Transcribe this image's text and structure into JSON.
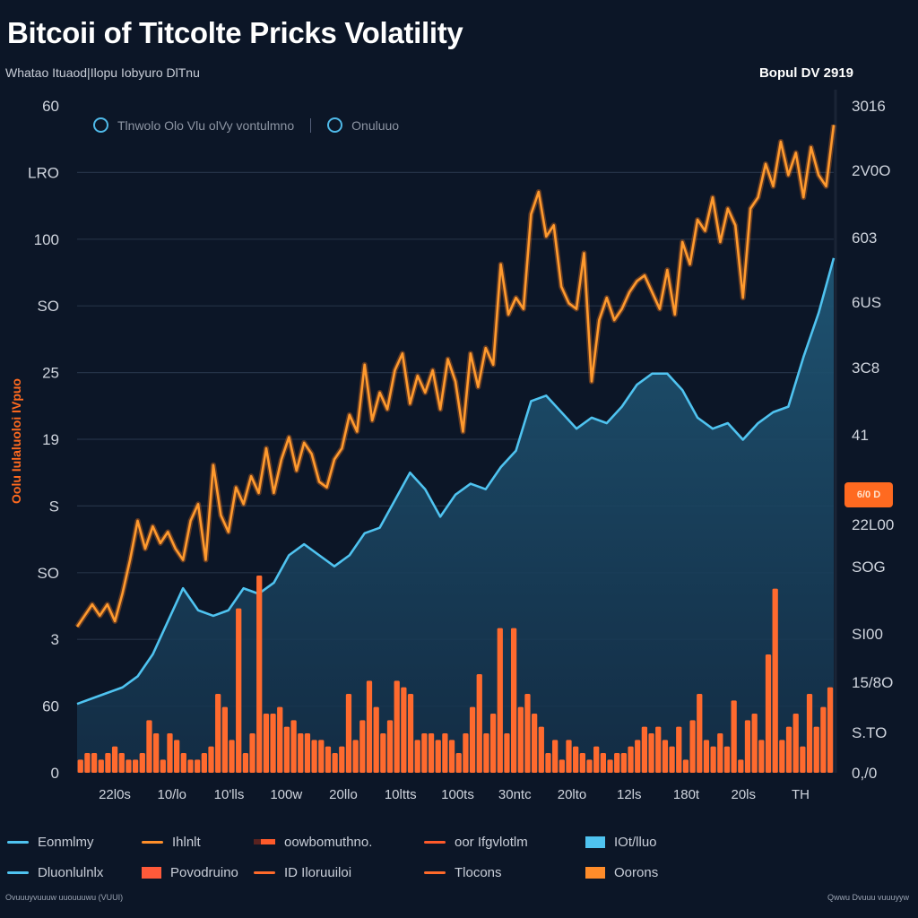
{
  "header": {
    "title": "Bitcoii of Titcolte Pricks Volatility",
    "subtitle": "Whatao Ituaod|Ilopu Iobyuro DlTnu",
    "date_label": "Bopul DV 2919"
  },
  "inner_legend": {
    "items": [
      "Tlnwolo Olo Vlu olVy vontulmno",
      "Onuluuo"
    ]
  },
  "badge": {
    "label": "6/0 D"
  },
  "footer": {
    "left": "Ovuuuyvuuuw uuouuuwu (VUUI)",
    "right": "Qwwu Dvuuu vuuuyyw"
  },
  "colors": {
    "background": "#0c1627",
    "price_line": "#ff9a2e",
    "index_line": "#4fc3f0",
    "index_fill": "#1d4a66",
    "volume_bar": "#ff6a2e",
    "grid": "#243247",
    "badge": "#ff6a20"
  },
  "legend": {
    "rows": [
      [
        {
          "label": "Eonmlmy",
          "swatch": "line",
          "color": "#4fc3f0"
        },
        {
          "label": "Ihlnlt",
          "swatch": "line",
          "color": "#ff8f2a"
        },
        {
          "label": "oowbomuthno.",
          "swatch": "dual",
          "color": "#ff5a2a"
        },
        {
          "label": "oor Ifgvlotlm",
          "swatch": "line",
          "color": "#ff5a2a"
        },
        {
          "label": "IOt/lluo",
          "swatch": "box",
          "color": "#4fc3f0"
        }
      ],
      [
        {
          "label": "Dluonlulnlx",
          "swatch": "line",
          "color": "#4fc3f0"
        },
        {
          "label": "Povodruino",
          "swatch": "box",
          "color": "#ff5a3a"
        },
        {
          "label": "ID Iloruuiloi",
          "swatch": "line",
          "color": "#ff6a2a"
        },
        {
          "label": "Tlocons",
          "swatch": "line",
          "color": "#ff6a2a"
        },
        {
          "label": "Oorons",
          "swatch": "box",
          "color": "#ff8c2a"
        }
      ]
    ]
  },
  "chart_data": {
    "type": "line",
    "title": "Bitcoii of Titcolte Pricks Volatility",
    "subtitle": "Whatao Ituaod|Ilopu Iobyuro DlTnu",
    "xlabel": "",
    "ylabel": "Oolu Iulaluoloi IVpuo",
    "ylabel_right": "",
    "grid": true,
    "legend_position": "bottom",
    "y_left_ticks": [
      "60",
      "LRO",
      "100",
      "SO",
      "25",
      "19",
      "S",
      "SO",
      "3",
      "60",
      "0"
    ],
    "y_right_ticks": [
      "3016",
      "2V0O",
      "603",
      "6US",
      "3C8",
      "41",
      "22L00",
      "SOG",
      "SI00",
      "15/8O",
      "S.TO",
      "0,/0"
    ],
    "x_ticks": [
      "22l0s",
      "10/lo",
      "10'lls",
      "100w",
      "20llo",
      "10ltts",
      "100ts",
      "30ntc",
      "20lto",
      "12ls",
      "180t",
      "20ls",
      "TH"
    ],
    "x_range": [
      0,
      100
    ],
    "y_range": [
      0,
      100
    ],
    "series": [
      {
        "name": "Price (orange)",
        "kind": "line",
        "x": [
          0,
          1,
          2,
          3,
          4,
          5,
          6,
          7,
          8,
          9,
          10,
          11,
          12,
          13,
          14,
          15,
          16,
          17,
          18,
          19,
          20,
          21,
          22,
          23,
          24,
          25,
          26,
          27,
          28,
          29,
          30,
          31,
          32,
          33,
          34,
          35,
          36,
          37,
          38,
          39,
          40,
          41,
          42,
          43,
          44,
          45,
          46,
          47,
          48,
          49,
          50,
          51,
          52,
          53,
          54,
          55,
          56,
          57,
          58,
          59,
          60,
          61,
          62,
          63,
          64,
          65,
          66,
          67,
          68,
          69,
          70,
          71,
          72,
          73,
          74,
          75,
          76,
          77,
          78,
          79,
          80,
          81,
          82,
          83,
          84,
          85,
          86,
          87,
          88,
          89,
          90,
          91,
          92,
          93,
          94,
          95,
          96,
          97,
          98,
          99,
          100
        ],
        "values": [
          13,
          15,
          17,
          15,
          17,
          14,
          19,
          25,
          32,
          27,
          31,
          28,
          30,
          27,
          25,
          32,
          35,
          25,
          42,
          33,
          30,
          38,
          35,
          40,
          37,
          45,
          37,
          43,
          47,
          41,
          46,
          44,
          39,
          38,
          43,
          45,
          51,
          48,
          60,
          50,
          55,
          52,
          59,
          62,
          53,
          58,
          55,
          59,
          52,
          61,
          57,
          48,
          62,
          56,
          63,
          60,
          78,
          69,
          72,
          70,
          87,
          91,
          83,
          85,
          74,
          71,
          70,
          80,
          57,
          68,
          72,
          68,
          70,
          73,
          75,
          76,
          73,
          70,
          77,
          69,
          82,
          78,
          86,
          84,
          90,
          82,
          88,
          85,
          72,
          88,
          90,
          96,
          92,
          100,
          94,
          98,
          90,
          99,
          94,
          92,
          103
        ]
      },
      {
        "name": "Index (blue, filled)",
        "kind": "area",
        "x": [
          0,
          2,
          4,
          6,
          8,
          10,
          12,
          14,
          16,
          18,
          20,
          22,
          24,
          26,
          28,
          30,
          32,
          34,
          36,
          38,
          40,
          42,
          44,
          46,
          48,
          50,
          52,
          54,
          56,
          58,
          60,
          62,
          64,
          66,
          68,
          70,
          72,
          74,
          76,
          78,
          80,
          82,
          84,
          86,
          88,
          90,
          92,
          94,
          96,
          98,
          100
        ],
        "values": [
          6,
          7,
          8,
          9,
          11,
          15,
          21,
          27,
          23,
          22,
          23,
          27,
          26,
          28,
          33,
          35,
          33,
          31,
          33,
          37,
          38,
          43,
          48,
          45,
          40,
          44,
          46,
          45,
          49,
          52,
          61,
          62,
          59,
          56,
          58,
          57,
          60,
          64,
          66,
          66,
          63,
          58,
          56,
          57,
          54,
          57,
          59,
          60,
          69,
          77,
          87
        ]
      },
      {
        "name": "Volume (bars)",
        "kind": "bar",
        "values": [
          2,
          3,
          3,
          2,
          3,
          4,
          3,
          2,
          2,
          3,
          8,
          6,
          2,
          6,
          5,
          3,
          2,
          2,
          3,
          4,
          12,
          10,
          5,
          25,
          3,
          6,
          30,
          9,
          9,
          10,
          7,
          8,
          6,
          6,
          5,
          5,
          4,
          3,
          4,
          12,
          5,
          8,
          14,
          10,
          6,
          8,
          14,
          13,
          12,
          5,
          6,
          6,
          5,
          6,
          5,
          3,
          6,
          10,
          15,
          6,
          9,
          22,
          6,
          22,
          10,
          12,
          9,
          7,
          3,
          5,
          2,
          5,
          4,
          3,
          2,
          4,
          3,
          2,
          3,
          3,
          4,
          5,
          7,
          6,
          7,
          5,
          4,
          7,
          2,
          8,
          12,
          5,
          4,
          6,
          4,
          11,
          2,
          8,
          9,
          5,
          18,
          28,
          5,
          7,
          9,
          4,
          12,
          7,
          10,
          13
        ]
      }
    ]
  }
}
